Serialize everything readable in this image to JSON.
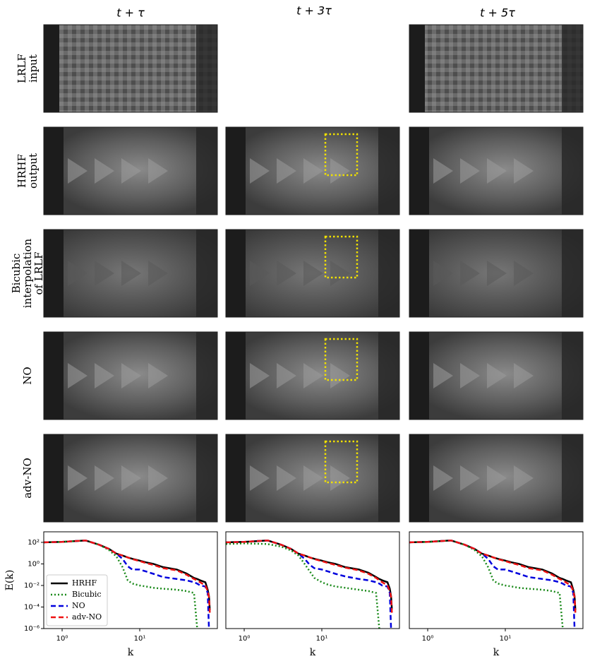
{
  "columns": [
    "t + τ",
    "t + 3τ",
    "t + 5τ"
  ],
  "rows": [
    [
      "LRLF",
      "input"
    ],
    [
      "HRHF",
      "output"
    ],
    [
      "Bicubic",
      "interpolation",
      "of LRLF"
    ],
    [
      "NO"
    ],
    [
      "adv-NO"
    ]
  ],
  "chart_data": [
    {
      "type": "line",
      "xscale": "log",
      "yscale": "log",
      "ylabel": "E(k)",
      "xlabel": "k",
      "legend": "lower left",
      "xlim": [
        0.58,
        100
      ],
      "ylim": [
        1e-06,
        950
      ],
      "xticks": [
        {
          "value": 1,
          "label": "10⁰"
        },
        {
          "value": 10,
          "label": "10¹"
        }
      ],
      "yticks": [
        {
          "value": 100,
          "label": "10²"
        },
        {
          "value": 1,
          "label": "10⁰"
        },
        {
          "value": 0.01,
          "label": "10⁻²"
        },
        {
          "value": 0.0001,
          "label": "10⁻⁴"
        },
        {
          "value": 1e-06,
          "label": "10⁻⁶"
        }
      ],
      "x": [
        0.58,
        1,
        2,
        3,
        4,
        5,
        6,
        7,
        8,
        10,
        12,
        15,
        20,
        30,
        40,
        50,
        55,
        60,
        70,
        75,
        78,
        80
      ],
      "series": [
        {
          "name": "HRHF",
          "color": "#000000",
          "dash": "solid",
          "values": [
            100,
            110,
            150,
            60,
            25,
            9,
            6,
            4,
            3,
            2,
            1.4,
            1,
            0.5,
            0.3,
            0.13,
            0.05,
            0.04,
            0.03,
            0.02,
            0.004,
            0.001,
            5e-05
          ]
        },
        {
          "name": "Bicubic",
          "color": "#1a8a1a",
          "dash": "dotted",
          "values": [
            100,
            110,
            150,
            60,
            20,
            5,
            0.5,
            0.03,
            0.015,
            0.01,
            0.008,
            0.006,
            0.005,
            0.004,
            0.003,
            0.002,
            1e-06,
            null,
            null,
            null,
            null,
            null
          ]
        },
        {
          "name": "NO",
          "color": "#0000dd",
          "dash": "dashed",
          "values": [
            100,
            110,
            150,
            60,
            25,
            9,
            3,
            0.6,
            0.3,
            0.3,
            0.2,
            0.12,
            0.06,
            0.04,
            0.03,
            0.02,
            0.015,
            0.01,
            0.008,
            0.002,
            1e-06,
            null
          ]
        },
        {
          "name": "adv-NO",
          "color": "#ee1111",
          "dash": "dashed",
          "values": [
            100,
            110,
            150,
            60,
            25,
            9,
            6,
            4,
            2.8,
            1.8,
            1.2,
            0.8,
            0.4,
            0.25,
            0.1,
            0.04,
            0.03,
            0.02,
            0.01,
            0.003,
            0.0008,
            3e-05
          ]
        }
      ]
    },
    {
      "type": "line",
      "xscale": "log",
      "yscale": "log",
      "xlabel": "k",
      "xlim": [
        0.58,
        100
      ],
      "ylim": [
        1e-06,
        950
      ],
      "xticks": [
        {
          "value": 1,
          "label": "10⁰"
        },
        {
          "value": 10,
          "label": "10¹"
        }
      ],
      "x": [
        0.58,
        1,
        2,
        3,
        4,
        5,
        6,
        7,
        8,
        10,
        12,
        15,
        20,
        30,
        40,
        50,
        55,
        60,
        70,
        75,
        78,
        80
      ],
      "series": [
        {
          "color": "#000000",
          "dash": "solid",
          "values": [
            100,
            110,
            150,
            60,
            25,
            9,
            6,
            4,
            3,
            2,
            1.4,
            1,
            0.5,
            0.3,
            0.15,
            0.06,
            0.04,
            0.03,
            0.02,
            0.005,
            0.001,
            6e-05
          ]
        },
        {
          "color": "#1a8a1a",
          "dash": "dotted",
          "values": [
            70,
            80,
            70,
            40,
            18,
            6,
            1,
            0.2,
            0.05,
            0.02,
            0.012,
            0.008,
            0.006,
            0.004,
            0.003,
            0.002,
            1e-06,
            null,
            null,
            null,
            null,
            null
          ]
        },
        {
          "color": "#0000dd",
          "dash": "dashed",
          "values": [
            100,
            110,
            150,
            60,
            25,
            9,
            3,
            0.8,
            0.4,
            0.3,
            0.2,
            0.12,
            0.07,
            0.04,
            0.03,
            0.02,
            0.015,
            0.01,
            0.008,
            0.002,
            1e-06,
            null
          ]
        },
        {
          "color": "#ee1111",
          "dash": "dashed",
          "values": [
            100,
            110,
            150,
            60,
            25,
            9,
            6,
            4,
            2.8,
            1.8,
            1.2,
            0.8,
            0.45,
            0.25,
            0.12,
            0.05,
            0.03,
            0.02,
            0.01,
            0.003,
            0.0008,
            3e-05
          ]
        }
      ]
    },
    {
      "type": "line",
      "xscale": "log",
      "yscale": "log",
      "xlabel": "k",
      "xlim": [
        0.58,
        100
      ],
      "ylim": [
        1e-06,
        950
      ],
      "xticks": [
        {
          "value": 1,
          "label": "10⁰"
        },
        {
          "value": 10,
          "label": "10¹"
        }
      ],
      "x": [
        0.58,
        1,
        2,
        3,
        4,
        5,
        6,
        7,
        8,
        10,
        12,
        15,
        20,
        30,
        40,
        50,
        55,
        60,
        70,
        75,
        78,
        80
      ],
      "series": [
        {
          "color": "#000000",
          "dash": "solid",
          "values": [
            100,
            110,
            150,
            60,
            25,
            9,
            6,
            4,
            3,
            2,
            1.4,
            1,
            0.5,
            0.3,
            0.13,
            0.05,
            0.04,
            0.03,
            0.02,
            0.004,
            0.001,
            5e-05
          ]
        },
        {
          "color": "#1a8a1a",
          "dash": "dotted",
          "values": [
            100,
            110,
            150,
            60,
            20,
            5,
            0.5,
            0.03,
            0.015,
            0.01,
            0.008,
            0.006,
            0.005,
            0.004,
            0.003,
            0.002,
            1e-06,
            null,
            null,
            null,
            null,
            null
          ]
        },
        {
          "color": "#0000dd",
          "dash": "dashed",
          "values": [
            100,
            110,
            150,
            60,
            25,
            9,
            3,
            0.6,
            0.3,
            0.3,
            0.2,
            0.12,
            0.06,
            0.04,
            0.03,
            0.02,
            0.015,
            0.01,
            0.008,
            0.002,
            1e-06,
            null
          ]
        },
        {
          "color": "#ee1111",
          "dash": "dashed",
          "values": [
            100,
            110,
            150,
            60,
            25,
            9,
            6,
            4,
            2.8,
            1.8,
            1.2,
            0.8,
            0.4,
            0.25,
            0.1,
            0.04,
            0.03,
            0.02,
            0.01,
            0.003,
            0.0008,
            3e-05
          ]
        }
      ]
    }
  ]
}
